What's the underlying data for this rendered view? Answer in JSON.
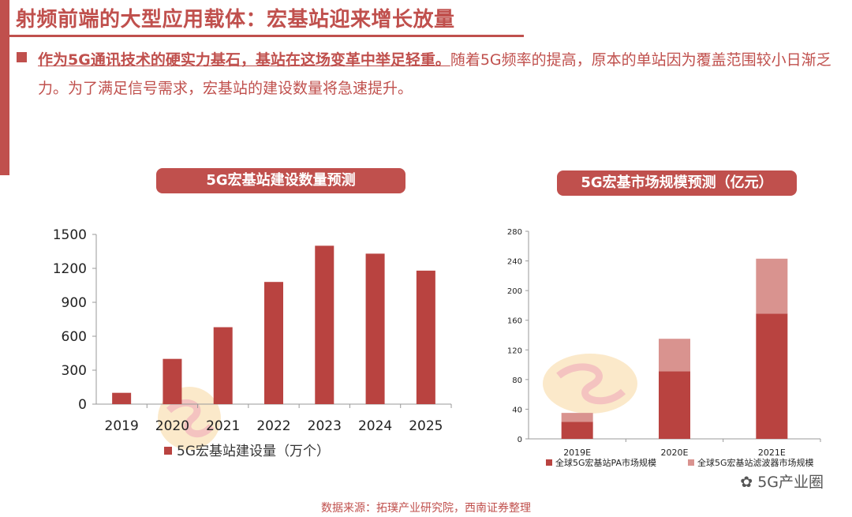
{
  "header": {
    "title": "射频前端的大型应用载体：宏基站迎来增长放量"
  },
  "intro": {
    "bold_text": "作为5G通讯技术的硬实力基石，基站在这场变革中举足轻重。",
    "body_text": "随着5G频率的提高，原本的单站因为覆盖范围较小日渐乏力。为了满足信号需求，宏基站的建设数量将急速提升。"
  },
  "chart_titles": {
    "left": "5G宏基站建设数量预测",
    "right": "5G宏基市场规模预测（亿元）"
  },
  "footer": {
    "source": "数据来源：拓璞产业研究院，西南证券整理",
    "watermark": "5G产业圈"
  },
  "colors": {
    "accent": "#c0504d",
    "series_dark": "#b94340",
    "series_light": "#d9938f"
  },
  "chart_data": [
    {
      "type": "bar",
      "categories": [
        "2019",
        "2020",
        "2021",
        "2022",
        "2023",
        "2024",
        "2025"
      ],
      "series": [
        {
          "name": "5G宏基站建设量（万个）",
          "values": [
            100,
            400,
            680,
            1080,
            1400,
            1330,
            1180
          ]
        }
      ],
      "ylim": [
        0,
        1500
      ],
      "yticks": [
        0,
        300,
        600,
        900,
        1200,
        1500
      ],
      "grid": false,
      "legend": "bottom"
    },
    {
      "type": "bar",
      "stacked": true,
      "categories": [
        "2019E",
        "2020E",
        "2021E"
      ],
      "series": [
        {
          "name": "全球5G宏基站PA市场规模",
          "values": [
            23,
            91,
            169
          ]
        },
        {
          "name": "全球5G宏基站滤波器市场规模",
          "values": [
            12,
            44,
            74
          ]
        }
      ],
      "ylim": [
        0,
        280
      ],
      "yticks": [
        0,
        40,
        80,
        120,
        160,
        200,
        240,
        280
      ],
      "grid": false,
      "legend": "bottom"
    }
  ]
}
